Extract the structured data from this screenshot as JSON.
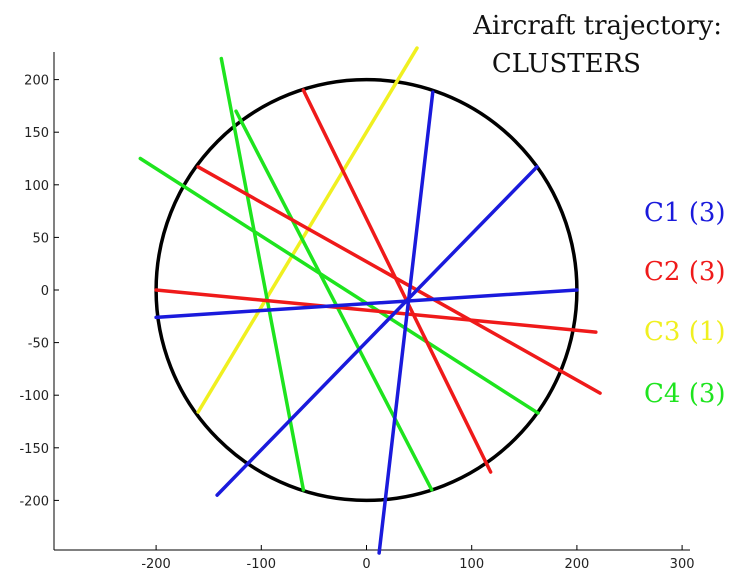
{
  "chart_data": {
    "type": "line",
    "title_lines": [
      "Aircraft trajectory:",
      "CLUSTERS"
    ],
    "xlim": [
      -300,
      300
    ],
    "ylim": [
      -250,
      220
    ],
    "xticks": [
      -200,
      -100,
      0,
      100,
      200,
      300
    ],
    "yticks": [
      200,
      150,
      100,
      50,
      0,
      -50,
      -100,
      -150,
      -200
    ],
    "xtick_labels": [
      "-200",
      "-100",
      "0",
      "100",
      "200",
      "300"
    ],
    "ytick_labels": [
      "200",
      "150",
      "100",
      "50",
      "0",
      "-50",
      "-100",
      "-150",
      "-200"
    ],
    "circle": {
      "center": [
        0,
        0
      ],
      "radius": 200,
      "color": "#000000"
    },
    "clusters": [
      {
        "name": "C1 (3)",
        "color": "#1a1adc",
        "segments": [
          {
            "x": [
              -200,
              200
            ],
            "y": [
              -26,
              0
            ]
          },
          {
            "x": [
              -142,
              162
            ],
            "y": [
              -195,
              117
            ]
          },
          {
            "x": [
              12,
              63
            ],
            "y": [
              -250,
              188
            ]
          }
        ]
      },
      {
        "name": "C2 (3)",
        "color": "#ef1a1a",
        "segments": [
          {
            "x": [
              -200,
              218
            ],
            "y": [
              0,
              -40
            ]
          },
          {
            "x": [
              -160,
              222
            ],
            "y": [
              117,
              -98
            ]
          },
          {
            "x": [
              -60,
              118
            ],
            "y": [
              190,
              -173
            ]
          }
        ]
      },
      {
        "name": "C3 (1)",
        "color": "#f0f020",
        "segments": [
          {
            "x": [
              -160,
              48
            ],
            "y": [
              -116,
              230
            ]
          }
        ]
      },
      {
        "name": "C4 (3)",
        "color": "#1ee41e",
        "segments": [
          {
            "x": [
              -215,
              163
            ],
            "y": [
              125,
              -117
            ]
          },
          {
            "x": [
              -138,
              -60
            ],
            "y": [
              220,
              -190
            ]
          },
          {
            "x": [
              -124,
              62
            ],
            "y": [
              170,
              -190
            ]
          }
        ]
      }
    ]
  }
}
